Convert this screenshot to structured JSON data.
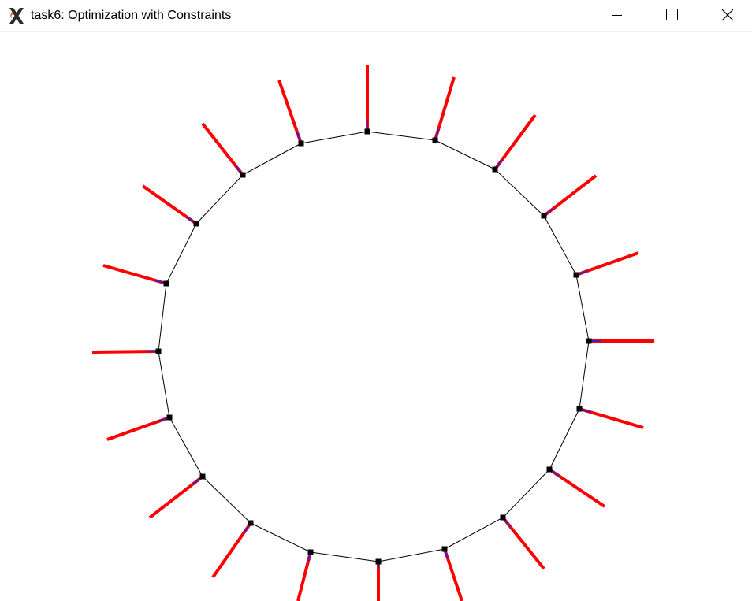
{
  "window": {
    "title": "task6: Optimization with Constraints",
    "app_icon": "x11-icon",
    "controls": [
      "minimize-icon",
      "maximize-icon",
      "close-icon"
    ]
  },
  "colors": {
    "force_line": "#ff0000",
    "constraint_line": "#3a20c8",
    "node": "#000000",
    "edge": "#000000",
    "background": "#ffffff"
  }
}
